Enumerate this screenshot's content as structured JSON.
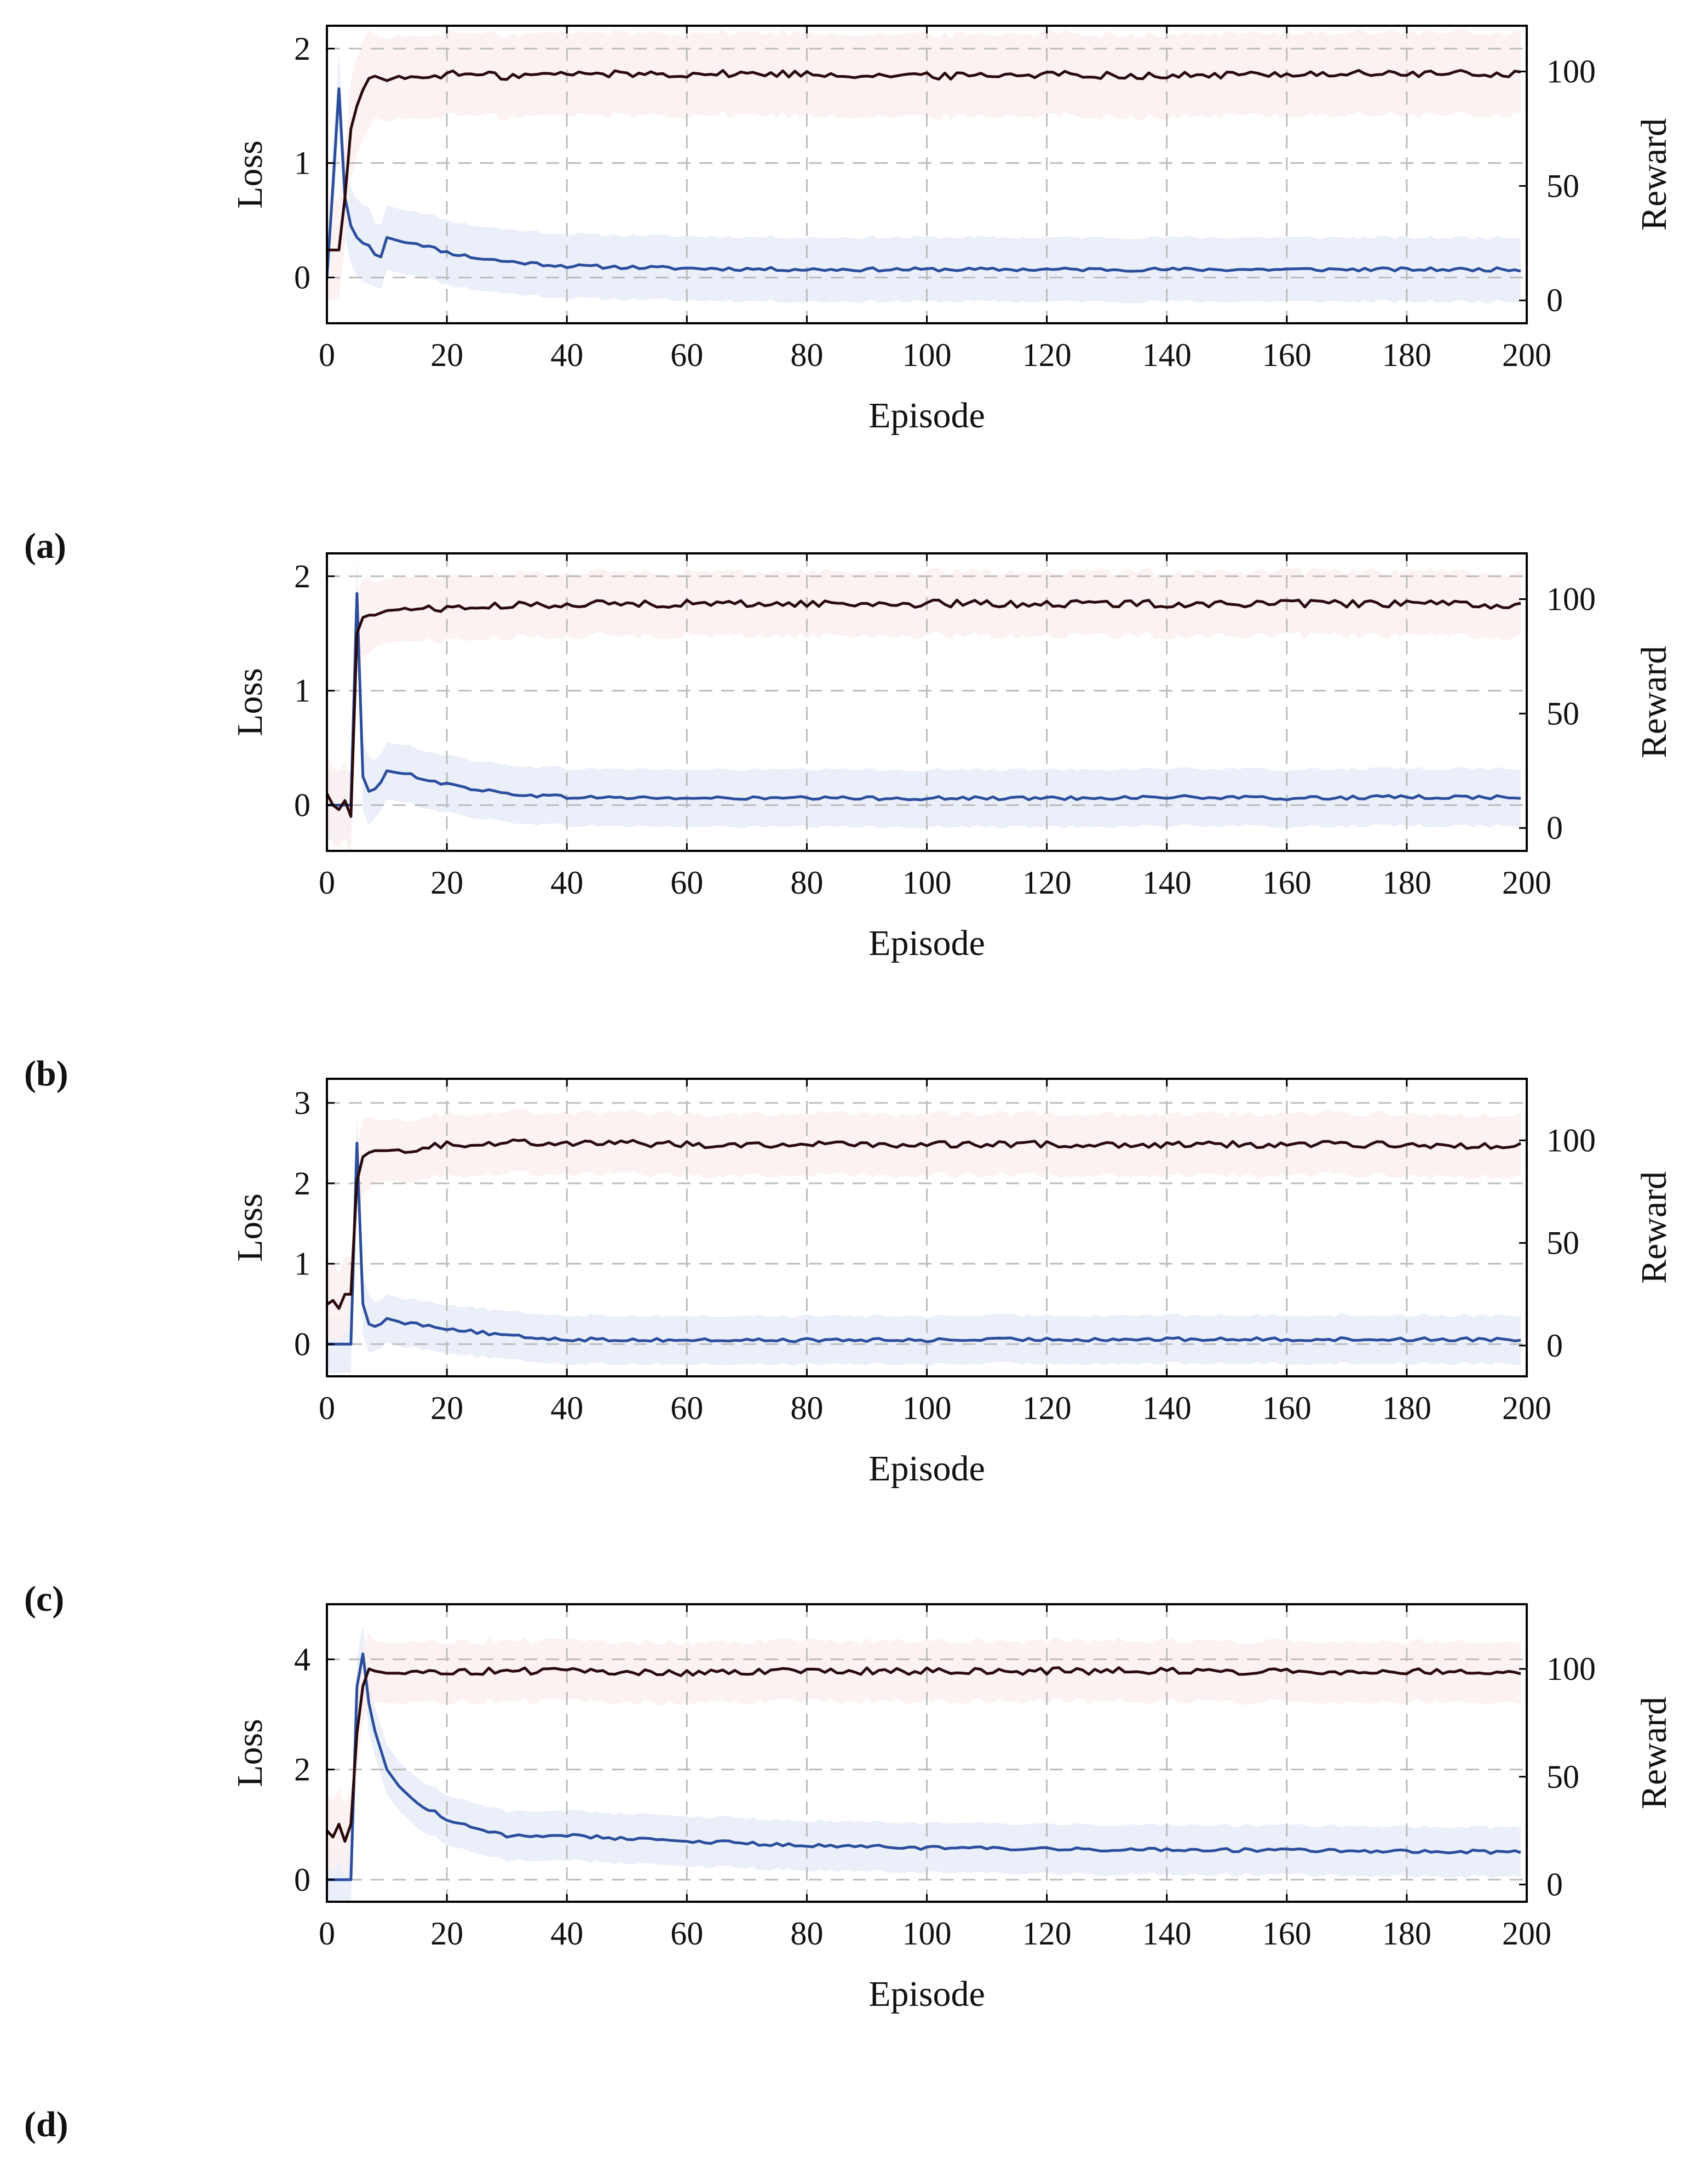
{
  "colors": {
    "loss": "#2a4d9c",
    "reward": "#2a0a0a",
    "loss_band": "#e8ecf8",
    "reward_band": "#fbf0f0",
    "grid": "#bdbdbd",
    "axis": "#000000"
  },
  "chart_data": [
    {
      "type": "line",
      "panel_label": "(a)",
      "xlabel": "Episode",
      "ylabel": "Loss",
      "ylabel_right": "Reward",
      "xlim": [
        0,
        200
      ],
      "xticks": [
        0,
        20,
        40,
        60,
        80,
        100,
        120,
        140,
        160,
        180,
        200
      ],
      "ylim": [
        -0.4,
        2.2
      ],
      "yticks": [
        0,
        1,
        2
      ],
      "ylim_right": [
        -10,
        120
      ],
      "yticks_right": [
        0,
        50,
        100
      ],
      "grid": true,
      "series": [
        {
          "name": "Loss",
          "axis": "left",
          "band": 0.28,
          "x": [
            0,
            1,
            2,
            3,
            4,
            5,
            6,
            7,
            8,
            9,
            10,
            12,
            15,
            20,
            25,
            30,
            40,
            60,
            80,
            100,
            120,
            140,
            160,
            180,
            200
          ],
          "y": [
            0.0,
            0.8,
            1.65,
            0.7,
            0.45,
            0.35,
            0.3,
            0.28,
            0.2,
            0.18,
            0.35,
            0.32,
            0.3,
            0.22,
            0.17,
            0.14,
            0.1,
            0.08,
            0.07,
            0.07,
            0.07,
            0.07,
            0.07,
            0.07,
            0.07
          ]
        },
        {
          "name": "Reward",
          "axis": "right",
          "band": 18,
          "x": [
            0,
            1,
            2,
            3,
            4,
            5,
            6,
            7,
            8,
            10,
            12,
            15,
            20,
            30,
            40,
            60,
            80,
            100,
            120,
            140,
            160,
            180,
            200
          ],
          "y": [
            22,
            22,
            22,
            45,
            75,
            85,
            92,
            97,
            98,
            96,
            98,
            97,
            99,
            98,
            99,
            99,
            99,
            98,
            99,
            98,
            99,
            99,
            99
          ]
        }
      ]
    },
    {
      "type": "line",
      "panel_label": "(b)",
      "xlabel": "Episode",
      "ylabel": "Loss",
      "ylabel_right": "Reward",
      "xlim": [
        0,
        200
      ],
      "xticks": [
        0,
        20,
        40,
        60,
        80,
        100,
        120,
        140,
        160,
        180,
        200
      ],
      "ylim": [
        -0.4,
        2.2
      ],
      "yticks": [
        0,
        1,
        2
      ],
      "ylim_right": [
        -10,
        120
      ],
      "yticks_right": [
        0,
        50,
        100
      ],
      "grid": true,
      "series": [
        {
          "name": "Loss",
          "axis": "left",
          "band": 0.25,
          "x": [
            0,
            1,
            2,
            3,
            4,
            5,
            6,
            7,
            8,
            9,
            10,
            12,
            15,
            20,
            25,
            30,
            40,
            60,
            80,
            100,
            120,
            140,
            160,
            180,
            200
          ],
          "y": [
            0.0,
            0.0,
            0.0,
            0.0,
            0.0,
            1.85,
            0.25,
            0.12,
            0.14,
            0.2,
            0.3,
            0.28,
            0.25,
            0.18,
            0.14,
            0.1,
            0.07,
            0.06,
            0.06,
            0.06,
            0.06,
            0.07,
            0.06,
            0.07,
            0.07
          ]
        },
        {
          "name": "Reward",
          "axis": "right",
          "band": 14,
          "x": [
            0,
            1,
            2,
            3,
            4,
            5,
            6,
            7,
            8,
            10,
            15,
            20,
            30,
            40,
            60,
            80,
            100,
            120,
            140,
            160,
            180,
            200
          ],
          "y": [
            15,
            10,
            8,
            12,
            5,
            85,
            92,
            93,
            93,
            95,
            96,
            96,
            97,
            98,
            98,
            98,
            98,
            98,
            98,
            98,
            98,
            97
          ]
        }
      ]
    },
    {
      "type": "line",
      "panel_label": "(c)",
      "xlabel": "Episode",
      "ylabel": "Loss",
      "ylabel_right": "Reward",
      "xlim": [
        0,
        200
      ],
      "xticks": [
        0,
        20,
        40,
        60,
        80,
        100,
        120,
        140,
        160,
        180,
        200
      ],
      "ylim": [
        -0.4,
        3.3
      ],
      "yticks": [
        0,
        1,
        2,
        3
      ],
      "ylim_right": [
        -15,
        130
      ],
      "yticks_right": [
        0,
        50,
        100
      ],
      "grid": true,
      "series": [
        {
          "name": "Loss",
          "axis": "left",
          "band": 0.3,
          "x": [
            0,
            1,
            2,
            3,
            4,
            5,
            6,
            7,
            8,
            9,
            10,
            12,
            15,
            20,
            25,
            30,
            40,
            60,
            80,
            100,
            120,
            140,
            160,
            180,
            200
          ],
          "y": [
            0.0,
            0.0,
            0.0,
            0.0,
            0.0,
            2.5,
            0.5,
            0.25,
            0.22,
            0.25,
            0.32,
            0.28,
            0.25,
            0.2,
            0.15,
            0.1,
            0.06,
            0.05,
            0.05,
            0.05,
            0.06,
            0.06,
            0.06,
            0.06,
            0.06
          ]
        },
        {
          "name": "Reward",
          "axis": "right",
          "band": 15,
          "x": [
            0,
            1,
            2,
            3,
            4,
            5,
            6,
            7,
            8,
            10,
            15,
            20,
            30,
            40,
            60,
            80,
            100,
            120,
            140,
            160,
            180,
            200
          ],
          "y": [
            20,
            22,
            18,
            25,
            25,
            80,
            92,
            94,
            95,
            95,
            96,
            98,
            99,
            99,
            98,
            98,
            98,
            98,
            98,
            98,
            98,
            97
          ]
        }
      ]
    },
    {
      "type": "line",
      "panel_label": "(d)",
      "xlabel": "Episode",
      "ylabel": "Loss",
      "ylabel_right": "Reward",
      "xlim": [
        0,
        200
      ],
      "xticks": [
        0,
        20,
        40,
        60,
        80,
        100,
        120,
        140,
        160,
        180,
        200
      ],
      "ylim": [
        -0.4,
        5.0
      ],
      "yticks": [
        0,
        2,
        4
      ],
      "ylim_right": [
        -8,
        130
      ],
      "yticks_right": [
        0,
        50,
        100
      ],
      "grid": true,
      "series": [
        {
          "name": "Loss",
          "axis": "left",
          "band": 0.45,
          "x": [
            0,
            1,
            2,
            3,
            4,
            5,
            6,
            7,
            8,
            10,
            12,
            15,
            20,
            25,
            30,
            40,
            50,
            60,
            80,
            100,
            120,
            140,
            160,
            180,
            200
          ],
          "y": [
            0.0,
            0.0,
            0.0,
            0.0,
            0.0,
            3.5,
            4.1,
            3.2,
            2.7,
            2.0,
            1.7,
            1.4,
            1.1,
            0.9,
            0.8,
            0.8,
            0.75,
            0.7,
            0.62,
            0.58,
            0.55,
            0.55,
            0.53,
            0.52,
            0.5
          ]
        },
        {
          "name": "Reward",
          "axis": "right",
          "band": 14,
          "x": [
            0,
            1,
            2,
            3,
            4,
            5,
            6,
            7,
            8,
            10,
            15,
            20,
            30,
            40,
            60,
            80,
            100,
            120,
            140,
            160,
            180,
            200
          ],
          "y": [
            25,
            22,
            28,
            20,
            28,
            70,
            92,
            100,
            99,
            98,
            98,
            99,
            99,
            99,
            98,
            99,
            99,
            99,
            99,
            99,
            99,
            99
          ]
        }
      ]
    }
  ]
}
